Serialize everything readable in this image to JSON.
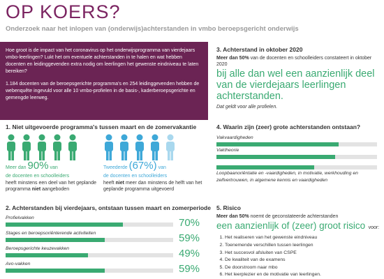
{
  "header": {
    "title": "OP KOERS?",
    "subtitle": "Onderzoek naar het inlopen van (onderwijs)achterstanden in vmbo beroepsgericht onderwijs"
  },
  "intro": {
    "question": "Hoe groot is de impact van het coronavirus op het onderwijsprogramma van vierdejaars vmbo-leerlingen? Lukt het om eventuele achterstanden in te halen en wat hebben docenten en leidinggevenden extra nodig om leerlingen het gewenste eindniveau te laten bereiken?",
    "method": "1.184 docenten van de beroepsgerichte programma's en 254 leidinggevenden hebben de webenquête ingevuld voor alle 10 vmbo-profielen in de basis-, kaderberoepsgerichte en gemengde leerweg."
  },
  "section3": {
    "heading": "3. Achterstand in oktober 2020",
    "lead_bold": "Meer dan 50%",
    "lead_text": "van de docenten en schoolleiders constateert in oktober 2020",
    "highlight": "bij alle dan wel een aanzienlijk deel van de vierdejaars leerlingen achterstanden.",
    "note": "Dat geldt voor alle profielen."
  },
  "section1": {
    "heading": "1. Niet uitgevoerde programma's tussen maart en de zomervakantie",
    "left": {
      "prefix": "Meer dan",
      "big": "90%",
      "suffix": "van",
      "who": "de docenten en schoolleiders",
      "text": "heeft minstens een deel van het geplande programma",
      "bold": "niet",
      "end": "aangeboden"
    },
    "right": {
      "prefix": "Tweederde",
      "big": "(67%)",
      "suffix": "van",
      "who": "de docenten en schoolleiders",
      "text1": "heeft",
      "bold": "niet",
      "text2": "meer dan minstens de helft van het geplande programma uitgevoerd"
    }
  },
  "section4": {
    "heading": "4. Waarin zijn (zeer) grote achterstanden ontstaan?",
    "chart": {
      "xlim": [
        0,
        100
      ],
      "color": "#3aaa72",
      "items": [
        {
          "label": "Vakvaardigheden",
          "value": 76
        },
        {
          "label": "Vaktheorie",
          "value": 74
        },
        {
          "label": "Loopbaanoriëntatie en -vaardigheden, in motivatie, werkhouding en zelfvertrouwen, in algemene kennis en vaardigheden",
          "value": 61
        }
      ]
    }
  },
  "section2": {
    "heading": "2. Achterstanden bij vierdejaars, ontstaan tussen maart en zomerperiode",
    "chart": {
      "xlim": [
        0,
        100
      ],
      "color": "#3aaa72",
      "items": [
        {
          "label": "Profielvakken",
          "value": 70,
          "value_label": "70%"
        },
        {
          "label": "Stages en beroepsoriënterende activiteiten",
          "value": 59,
          "value_label": "59%"
        },
        {
          "label": "Beroepsgerichte keuzevakken",
          "value": 49,
          "value_label": "49%"
        },
        {
          "label": "Avo-vakken",
          "value": 59,
          "value_label": "59%"
        }
      ]
    }
  },
  "section5": {
    "heading": "5. Risico",
    "lead_bold": "Meer dan 50%",
    "lead_text": "noemt de geconstateerde achterstanden",
    "highlight": "een aanzienlijk of (zeer) groot risico",
    "highlight_end": "voor:",
    "list": [
      "Het realiseren van het gewenste eindniveau",
      "Toenemende verschillen tussen leerlingen",
      "Het succesvol afsluiten van CSPE",
      "De kwaliteit van de examens",
      "De doorstroom naar mbo",
      "Het leerplezier en de motivatie van leerlingen."
    ]
  }
}
